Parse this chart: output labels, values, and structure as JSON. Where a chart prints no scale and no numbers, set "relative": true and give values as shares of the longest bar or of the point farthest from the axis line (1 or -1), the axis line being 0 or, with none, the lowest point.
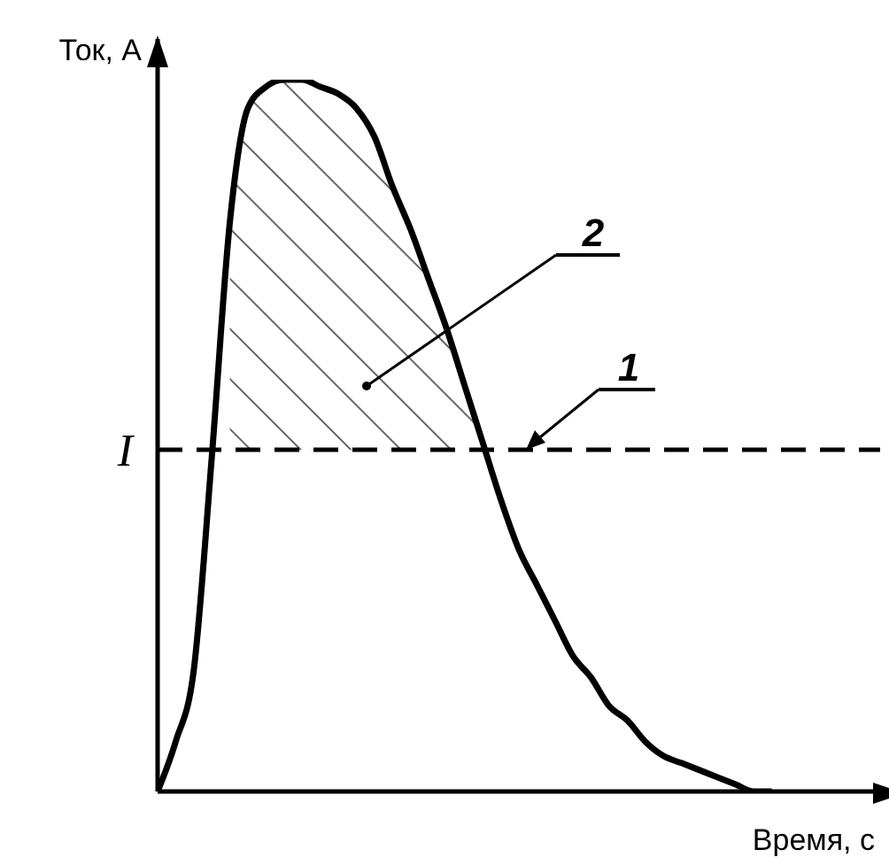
{
  "chart_data": {
    "type": "line",
    "relative": true,
    "xlabel": "Время, с",
    "ylabel": "Ток, А",
    "categories": [
      null,
      null,
      null,
      null,
      null,
      null,
      null,
      null,
      null,
      null,
      null,
      null,
      null,
      null,
      null,
      null,
      null,
      null,
      null,
      null,
      null,
      null,
      null,
      null,
      null,
      null,
      null,
      null,
      null,
      null,
      null,
      null,
      null,
      null,
      null,
      null,
      null,
      null,
      null,
      null,
      null
    ],
    "series": [
      {
        "color": "#000000",
        "values": [
          0,
          0.07,
          0.17,
          0.47,
          0.8,
          0.96,
          0.99,
          1,
          1,
          0.99,
          0.98,
          0.96,
          0.92,
          0.85,
          0.79,
          0.72,
          0.65,
          0.57,
          0.49,
          0.41,
          0.34,
          0.29,
          0.24,
          0.19,
          0.16,
          0.12,
          0.1,
          0.07,
          0.05,
          0.04,
          0.03,
          0.02,
          0.01,
          0,
          0,
          null,
          null,
          null,
          null,
          null,
          null
        ],
        "lower": [
          null,
          null,
          null,
          null,
          0.48,
          0.48,
          0.48,
          0.48,
          0.48,
          0.48,
          0.48,
          0.48,
          0.48,
          0.48,
          0.48,
          0.48,
          0.48,
          0.48,
          0.48,
          null,
          null,
          null,
          null,
          null,
          null,
          null,
          null,
          null,
          null,
          null,
          null,
          null,
          null,
          null,
          null,
          null,
          null,
          null,
          null,
          null,
          null
        ],
        "upper": [
          null,
          null,
          null,
          null,
          0.8,
          0.96,
          0.99,
          1,
          1,
          0.99,
          0.98,
          0.96,
          0.92,
          0.85,
          0.79,
          0.72,
          0.65,
          0.57,
          0.49,
          null,
          null,
          null,
          null,
          null,
          null,
          null,
          null,
          null,
          null,
          null,
          null,
          null,
          null,
          null,
          null,
          null,
          null,
          null,
          null,
          null,
          null
        ]
      }
    ],
    "ref_lines": [
      {
        "axis": "y",
        "value": 0.48,
        "label": "I",
        "line_style": "dashed",
        "color": "#000000"
      }
    ],
    "annotations": [
      "1",
      "2"
    ]
  }
}
